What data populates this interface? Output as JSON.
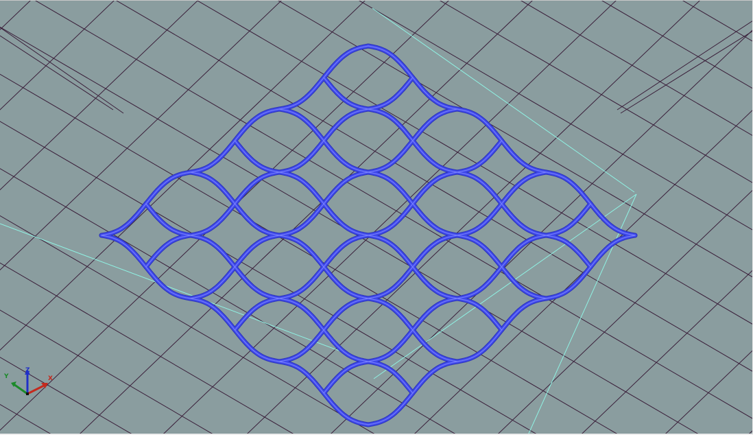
{
  "viewport": {
    "background": "#8a9d9f",
    "grid_color": "#3a1f3a",
    "mesh_color": "#3f49ea",
    "mesh_highlight": "#7b83ff",
    "guide_color": "#8ff2e3",
    "mesh_cells": 6
  },
  "triad": {
    "x_label": "X",
    "y_label": "Y",
    "z_label": "Z",
    "x_color": "#c42a1e",
    "y_color": "#1c8a2a",
    "z_color": "#2030c8"
  }
}
